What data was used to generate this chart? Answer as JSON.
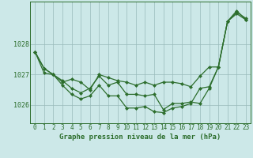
{
  "background_color": "#cce8e8",
  "plot_bg_color": "#cce8e8",
  "line_color": "#2d6e2d",
  "grid_color": "#99bbbb",
  "marker": "D",
  "marker_size": 2.0,
  "line_width": 0.9,
  "xlabel": "Graphe pression niveau de la mer (hPa)",
  "xlabel_fontsize": 6.5,
  "ylabel_fontsize": 6.0,
  "tick_fontsize": 5.5,
  "ylim": [
    1025.4,
    1029.4
  ],
  "xlim": [
    -0.5,
    23.5
  ],
  "yticks": [
    1026,
    1027,
    1028
  ],
  "series": [
    [
      1027.75,
      1027.2,
      1027.0,
      1026.8,
      1026.55,
      1026.4,
      1026.55,
      1026.95,
      1026.65,
      1026.75,
      1026.35,
      1026.35,
      1026.3,
      1026.35,
      1025.85,
      1026.05,
      1026.05,
      1026.1,
      1026.05,
      1026.55,
      1027.25,
      1028.75,
      1029.05,
      1028.85
    ],
    [
      1027.75,
      1027.2,
      1027.0,
      1026.75,
      1026.85,
      1026.75,
      1026.5,
      1027.0,
      1026.9,
      1026.8,
      1026.75,
      1026.65,
      1026.75,
      1026.65,
      1026.75,
      1026.75,
      1026.7,
      1026.6,
      1026.95,
      1027.25,
      1027.25,
      1028.75,
      1029.0,
      1028.8
    ],
    [
      1027.75,
      1027.05,
      1027.0,
      1026.65,
      1026.35,
      1026.2,
      1026.3,
      1026.65,
      1026.3,
      1026.3,
      1025.9,
      1025.9,
      1025.95,
      1025.78,
      1025.75,
      1025.9,
      1025.95,
      1026.05,
      1026.55,
      1026.6,
      1027.25,
      1028.75,
      1029.1,
      1028.8
    ]
  ]
}
